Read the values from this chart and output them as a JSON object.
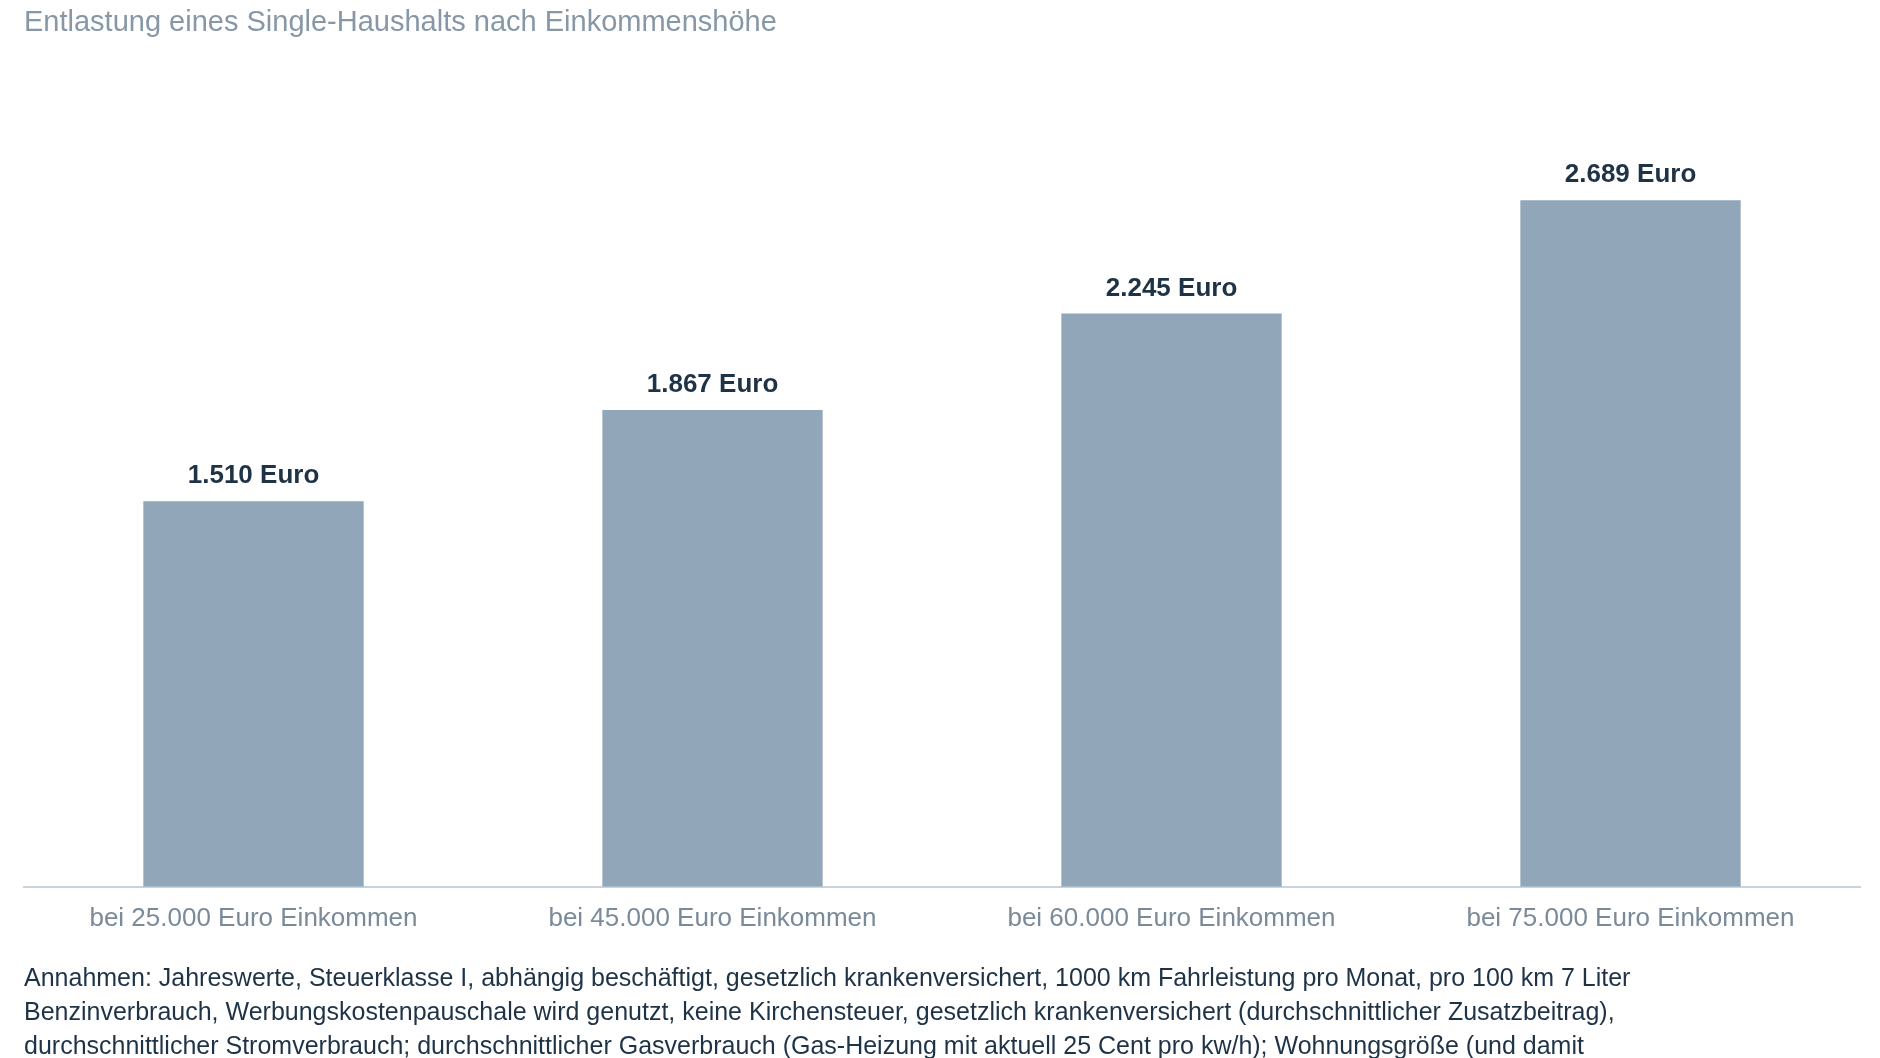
{
  "chart_data": {
    "type": "bar",
    "title": "Entlastung eines Single-Haushalts nach Einkommenshöhe",
    "categories": [
      "bei 25.000 Euro Einkommen",
      "bei 45.000 Euro Einkommen",
      "bei 60.000 Euro Einkommen",
      "bei 75.000 Euro Einkommen"
    ],
    "values": [
      1510,
      1867,
      2245,
      2689
    ],
    "value_labels": [
      "1.510 Euro",
      "1.867 Euro",
      "2.245 Euro",
      "2.689 Euro"
    ],
    "color": "#91a6b8",
    "annotations": [
      "Annahmen: Jahreswerte, Steuerklasse I, abhängig beschäftigt, gesetzlich krankenversichert, 1000 km Fahrleistung pro Monat, pro 100 km 7 Liter Benzinverbrauch,  Werbungskostenpauschale wird genutzt,  keine Kirchensteuer, gesetzlich krankenversichert (durchschnittlicher Zusatzbeitrag), durchschnittlicher Stromverbrauch; durchschnittlicher Gasverbrauch (Gas-Heizung mit aktuell 25 Cent pro kw/h); Wohnungsgröße (und damit"
    ]
  }
}
